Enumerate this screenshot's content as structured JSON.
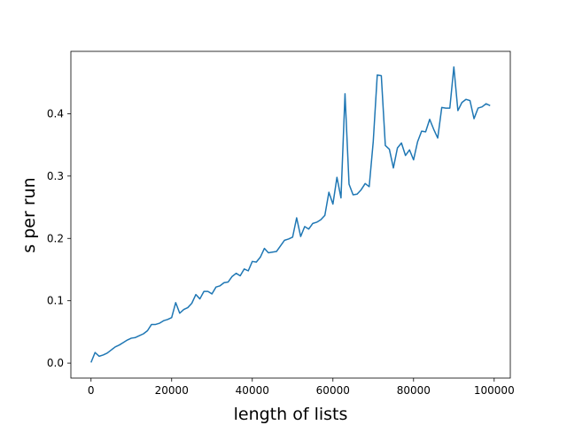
{
  "chart_data": {
    "type": "line",
    "title": "",
    "xlabel": "length of lists",
    "ylabel": "s per run",
    "xlim": [
      -5000,
      104000
    ],
    "ylim": [
      -0.024,
      0.5
    ],
    "grid": false,
    "legend": "none",
    "xticks": [
      0,
      20000,
      40000,
      60000,
      80000,
      100000
    ],
    "xtick_labels": [
      "0",
      "20000",
      "40000",
      "60000",
      "80000",
      "100000"
    ],
    "yticks": [
      0.0,
      0.1,
      0.2,
      0.3,
      0.4
    ],
    "ytick_labels": [
      "0.0",
      "0.1",
      "0.2",
      "0.3",
      "0.4"
    ],
    "series_color": "#1f77b4",
    "series": [
      {
        "x": [
          0,
          1000,
          2000,
          3000,
          4000,
          5000,
          6000,
          7000,
          8000,
          9000,
          10000,
          11000,
          12000,
          13000,
          14000,
          15000,
          16000,
          17000,
          18000,
          19000,
          20000,
          21000,
          22000,
          23000,
          24000,
          25000,
          26000,
          27000,
          28000,
          29000,
          30000,
          31000,
          32000,
          33000,
          34000,
          35000,
          36000,
          37000,
          38000,
          39000,
          40000,
          41000,
          42000,
          43000,
          44000,
          45000,
          46000,
          47000,
          48000,
          49000,
          50000,
          51000,
          52000,
          53000,
          54000,
          55000,
          56000,
          57000,
          58000,
          59000,
          60000,
          61000,
          62000,
          63000,
          64000,
          65000,
          66000,
          67000,
          68000,
          69000,
          70000,
          71000,
          72000,
          73000,
          74000,
          75000,
          76000,
          77000,
          78000,
          79000,
          80000,
          81000,
          82000,
          83000,
          84000,
          85000,
          86000,
          87000,
          88000,
          89000,
          90000,
          91000,
          92000,
          93000,
          94000,
          95000,
          96000,
          97000,
          98000,
          99000
        ],
        "values": [
          0.001,
          0.017,
          0.011,
          0.013,
          0.016,
          0.021,
          0.026,
          0.029,
          0.033,
          0.037,
          0.04,
          0.041,
          0.044,
          0.047,
          0.052,
          0.062,
          0.062,
          0.064,
          0.068,
          0.07,
          0.073,
          0.097,
          0.08,
          0.086,
          0.089,
          0.096,
          0.11,
          0.103,
          0.115,
          0.115,
          0.111,
          0.122,
          0.124,
          0.129,
          0.13,
          0.139,
          0.144,
          0.14,
          0.151,
          0.148,
          0.163,
          0.162,
          0.17,
          0.184,
          0.177,
          0.178,
          0.179,
          0.188,
          0.197,
          0.199,
          0.202,
          0.233,
          0.203,
          0.219,
          0.215,
          0.224,
          0.226,
          0.23,
          0.237,
          0.274,
          0.255,
          0.298,
          0.265,
          0.432,
          0.287,
          0.27,
          0.271,
          0.278,
          0.288,
          0.283,
          0.355,
          0.462,
          0.461,
          0.349,
          0.343,
          0.313,
          0.345,
          0.353,
          0.333,
          0.342,
          0.326,
          0.355,
          0.372,
          0.371,
          0.391,
          0.375,
          0.361,
          0.41,
          0.409,
          0.409,
          0.475,
          0.405,
          0.418,
          0.423,
          0.421,
          0.392,
          0.409,
          0.411,
          0.416,
          0.413
        ]
      }
    ]
  }
}
